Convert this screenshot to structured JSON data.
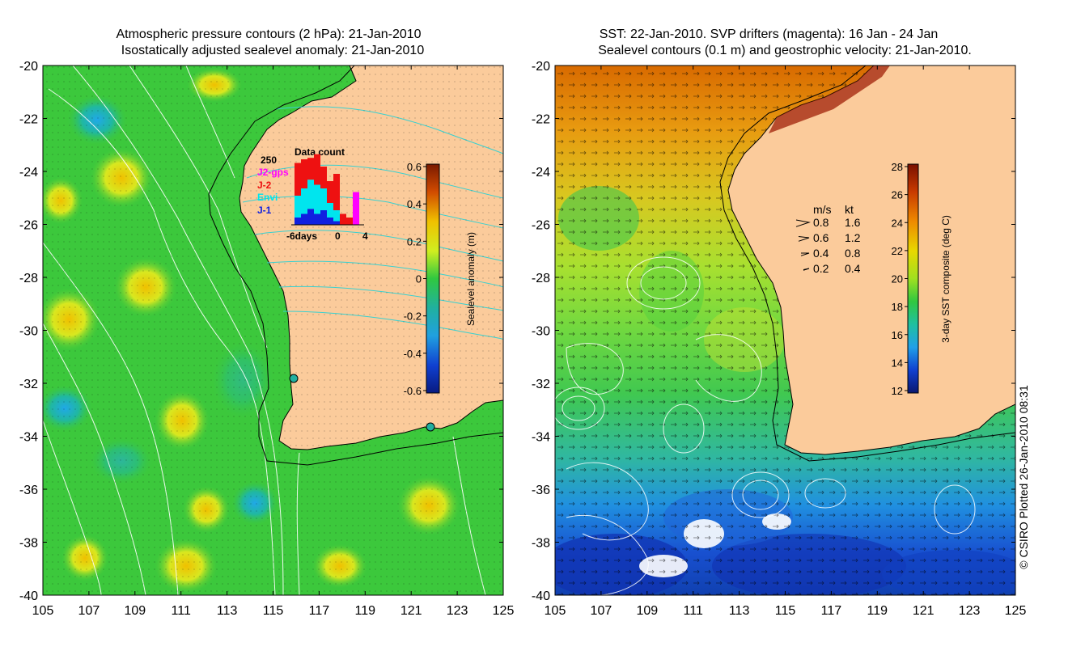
{
  "left_panel": {
    "title_line1": "Atmospheric pressure contours (2 hPa): 21-Jan-2010",
    "title_line2": "Isostatically adjusted sealevel anomaly: 21-Jan-2010",
    "colorbar": {
      "label": "Sealevel anomaly (m)",
      "tick_labels": [
        "0.6",
        "0.4",
        "0.2",
        "0",
        "-0.2",
        "-0.4",
        "-0.6"
      ]
    },
    "inset": {
      "title": "Data count",
      "y_tick": "250",
      "x_ticks": [
        "-6days",
        "0",
        "4"
      ],
      "legend": [
        {
          "label": "J2-gps",
          "color": "#ff00ff"
        },
        {
          "label": "J-2",
          "color": "#ee1111"
        },
        {
          "label": "Envi",
          "color": "#00e5ee"
        },
        {
          "label": "J-1",
          "color": "#1020e0"
        }
      ],
      "days": [
        {
          "J1": 0.1,
          "Envi": 0.3,
          "J2": 0.45,
          "J2gps": 0
        },
        {
          "J1": 0.15,
          "Envi": 0.35,
          "J2": 0.4,
          "J2gps": 0
        },
        {
          "J1": 0.22,
          "Envi": 0.4,
          "J2": 0.3,
          "J2gps": 0
        },
        {
          "J1": 0.15,
          "Envi": 0.4,
          "J2": 0.42,
          "J2gps": 0
        },
        {
          "J1": 0.2,
          "Envi": 0.3,
          "J2": 0.3,
          "J2gps": 0
        },
        {
          "J1": 0.1,
          "Envi": 0.2,
          "J2": 0.3,
          "J2gps": 0
        },
        {
          "J1": 0.05,
          "Envi": 0.15,
          "J2": 0.5,
          "J2gps": 0
        },
        {
          "J1": 0.0,
          "Envi": 0.0,
          "J2": 0.15,
          "J2gps": 0
        },
        {
          "J1": 0.0,
          "Envi": 0.0,
          "J2": 0.1,
          "J2gps": 0
        },
        {
          "J1": 0.0,
          "Envi": 0.0,
          "J2": 0.0,
          "J2gps": 0.45
        }
      ]
    }
  },
  "right_panel": {
    "title_line1": "SST: 22-Jan-2010. SVP drifters (magenta): 16 Jan - 24 Jan",
    "title_line2": "Sealevel contours (0.1 m) and geostrophic velocity: 21-Jan-2010.",
    "colorbar": {
      "label": "3-day SST composite (deg C)",
      "tick_labels": [
        "28",
        "26",
        "24",
        "22",
        "20",
        "18",
        "16",
        "14",
        "12"
      ]
    },
    "velocity_legend": {
      "header_ms": "m/s",
      "header_kt": "kt",
      "rows": [
        {
          "ms": "0.8",
          "kt": "1.6"
        },
        {
          "ms": "0.6",
          "kt": "1.2"
        },
        {
          "ms": "0.4",
          "kt": "0.8"
        },
        {
          "ms": "0.2",
          "kt": "0.4"
        }
      ]
    }
  },
  "axes": {
    "lat_labels": [
      "-20",
      "-22",
      "-24",
      "-26",
      "-28",
      "-30",
      "-32",
      "-34",
      "-36",
      "-38",
      "-40"
    ],
    "lon_labels": [
      "105",
      "107",
      "109",
      "111",
      "113",
      "115",
      "117",
      "119",
      "121",
      "123",
      "125"
    ],
    "lat_range": [
      -40,
      -20
    ],
    "lon_range": [
      105,
      125
    ]
  },
  "credit": "© CSIRO Plotted 26-Jan-2010 08:31",
  "colors": {
    "land": "#fbcb9b",
    "sla_ocean": "#3cc83c",
    "contour_pressure": "#ffffff",
    "contour_land": "#38d0d0"
  }
}
